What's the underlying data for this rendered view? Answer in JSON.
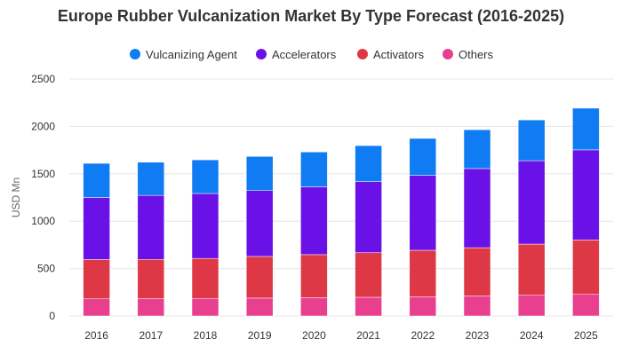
{
  "chart_data": {
    "type": "bar",
    "stacked": true,
    "title": "Europe Rubber Vulcanization Market By Type Forecast (2016-2025)",
    "xlabel": "",
    "ylabel": "USD Mn",
    "ylim": [
      0,
      2500
    ],
    "yticks": [
      0,
      500,
      1000,
      1500,
      2000,
      2500
    ],
    "grid": true,
    "legend_position": "top",
    "categories": [
      "2016",
      "2017",
      "2018",
      "2019",
      "2020",
      "2021",
      "2022",
      "2023",
      "2024",
      "2025"
    ],
    "series": [
      {
        "name": "Others",
        "color": "#e8408f",
        "values": [
          180,
          182,
          185,
          188,
          192,
          197,
          203,
          210,
          218,
          227
        ]
      },
      {
        "name": "Activators",
        "color": "#de3846",
        "values": [
          415,
          415,
          422,
          440,
          455,
          470,
          490,
          510,
          540,
          575
        ]
      },
      {
        "name": "Accelerators",
        "color": "#6a11e8",
        "values": [
          655,
          675,
          685,
          695,
          715,
          750,
          790,
          835,
          880,
          950
        ]
      },
      {
        "name": "Vulcanizing Agent",
        "color": "#0f7cf3",
        "values": [
          360,
          350,
          355,
          360,
          368,
          380,
          390,
          410,
          430,
          440
        ]
      }
    ],
    "legend_order": [
      "Vulcanizing Agent",
      "Accelerators",
      "Activators",
      "Others"
    ]
  }
}
